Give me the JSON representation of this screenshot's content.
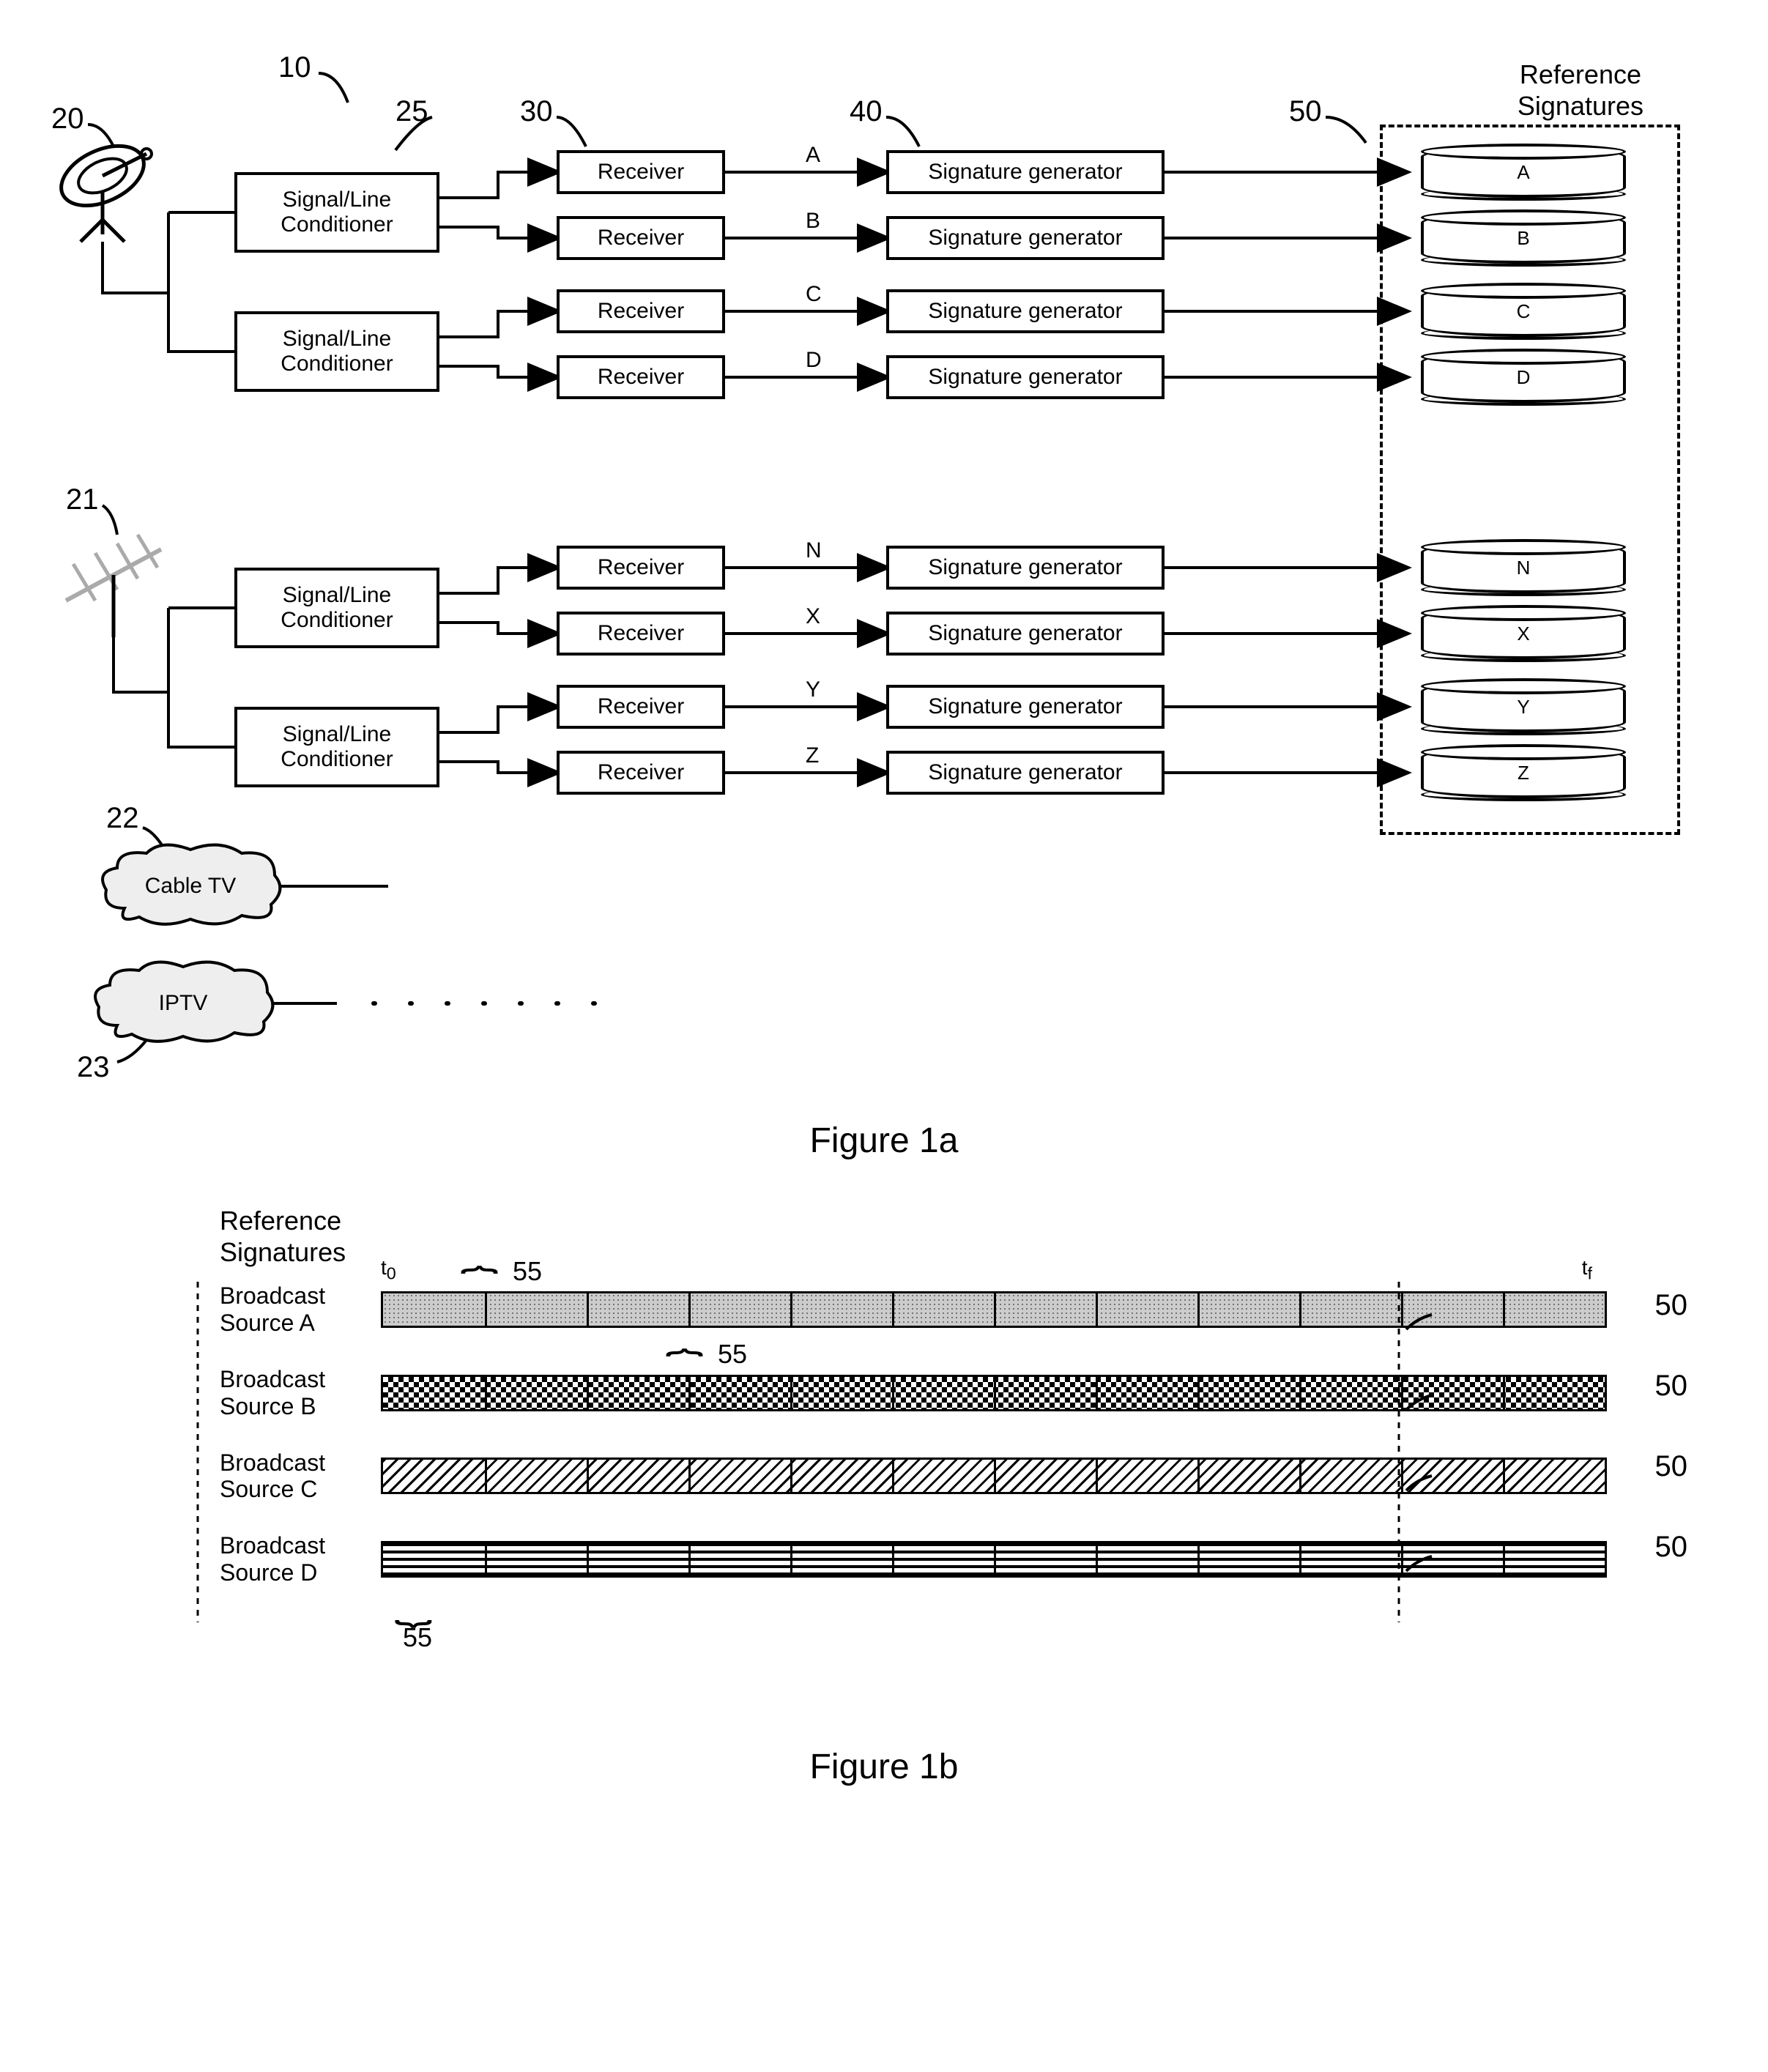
{
  "figure1a": {
    "title": "Figure 1a",
    "reference_title": "Reference\nSignatures",
    "callouts": {
      "c10": "10",
      "c20": "20",
      "c21": "21",
      "c22": "22",
      "c23": "23",
      "c25": "25",
      "c30": "30",
      "c40": "40",
      "c50": "50"
    },
    "conditioner_label": "Signal/Line\nConditioner",
    "receiver_label": "Receiver",
    "siggen_label": "Signature generator",
    "cloud_cable": "Cable TV",
    "cloud_iptv": "IPTV",
    "channels_top": [
      "A",
      "B",
      "C",
      "D"
    ],
    "channels_bot": [
      "N",
      "X",
      "Y",
      "Z"
    ],
    "colors": {
      "line": "#000000",
      "background": "#ffffff"
    }
  },
  "figure1b": {
    "title": "Figure 1b",
    "heading": "Reference\nSignatures",
    "t_start": "t",
    "t_start_sub": "0",
    "t_end": "t",
    "t_end_sub": "f",
    "sources": [
      {
        "label": "Broadcast\nSource A",
        "pattern": "dots"
      },
      {
        "label": "Broadcast\nSource B",
        "pattern": "checker"
      },
      {
        "label": "Broadcast\nSource C",
        "pattern": "diag"
      },
      {
        "label": "Broadcast\nSource D",
        "pattern": "hlines"
      }
    ],
    "callout50": "50",
    "callout55": "55",
    "tick_count": 12
  }
}
